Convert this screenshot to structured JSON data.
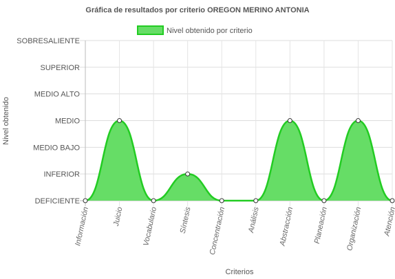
{
  "chart_data": {
    "type": "area",
    "title": "Gráfica de resultados por criterio OREGON MERINO ANTONIA",
    "xlabel": "Criterios",
    "ylabel": "Nivel obtenido",
    "legend_position": "top",
    "grid": true,
    "y_levels": [
      "DEFICIENTE",
      "INFERIOR",
      "MEDIO BAJO",
      "MEDIO",
      "MEDIO ALTO",
      "SUPERIOR",
      "SOBRESALIENTE"
    ],
    "ylim": [
      0,
      6
    ],
    "categories": [
      "Información",
      "Juicio",
      "Vocabulario",
      "Síntesis",
      "Concentración",
      "Análisis",
      "Abstracción",
      "Planeación",
      "Organización",
      "Atención"
    ],
    "series": [
      {
        "name": "Nivel obtenido por criterio",
        "values": [
          0,
          3,
          0,
          1,
          0,
          0,
          3,
          0,
          3,
          0
        ],
        "color": "#22cc22",
        "fill_color": "#66dd66"
      }
    ]
  }
}
